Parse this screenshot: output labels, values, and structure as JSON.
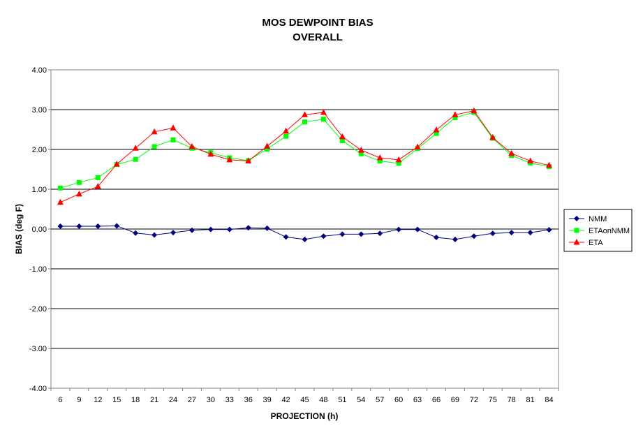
{
  "chart_data": {
    "type": "line",
    "title": "MOS DEWPOINT BIAS",
    "subtitle": "OVERALL",
    "xlabel": "PROJECTION (h)",
    "ylabel": "BIAS (deg F)",
    "ylim": [
      -4.0,
      4.0
    ],
    "y_ticks": [
      "4.00",
      "3.00",
      "2.00",
      "1.00",
      "0.00",
      "-1.00",
      "-2.00",
      "-3.00",
      "-4.00"
    ],
    "grid": true,
    "legend_position": "right",
    "x": [
      "6",
      "9",
      "12",
      "15",
      "18",
      "21",
      "24",
      "27",
      "30",
      "33",
      "36",
      "39",
      "42",
      "45",
      "48",
      "51",
      "54",
      "57",
      "60",
      "63",
      "66",
      "69",
      "72",
      "75",
      "78",
      "81",
      "84"
    ],
    "series": [
      {
        "name": "NMM",
        "color": "#000080",
        "marker": "diamond",
        "values": [
          0.07,
          0.07,
          0.07,
          0.08,
          -0.1,
          -0.15,
          -0.09,
          -0.03,
          -0.01,
          -0.01,
          0.03,
          0.02,
          -0.2,
          -0.26,
          -0.18,
          -0.13,
          -0.13,
          -0.11,
          -0.01,
          -0.01,
          -0.21,
          -0.26,
          -0.18,
          -0.11,
          -0.09,
          -0.09,
          -0.02
        ]
      },
      {
        "name": "ETAonNMM",
        "color": "#00ff00",
        "marker": "square",
        "values": [
          1.03,
          1.17,
          1.29,
          1.62,
          1.75,
          2.07,
          2.24,
          2.03,
          1.92,
          1.79,
          1.72,
          2.01,
          2.33,
          2.69,
          2.76,
          2.22,
          1.89,
          1.71,
          1.65,
          2.02,
          2.4,
          2.8,
          2.93,
          2.28,
          1.85,
          1.66,
          1.57
        ]
      },
      {
        "name": "ETA",
        "color": "#ff0000",
        "marker": "triangle",
        "values": [
          0.67,
          0.88,
          1.07,
          1.63,
          2.03,
          2.44,
          2.54,
          2.07,
          1.88,
          1.74,
          1.71,
          2.08,
          2.46,
          2.87,
          2.93,
          2.32,
          1.98,
          1.79,
          1.74,
          2.06,
          2.49,
          2.87,
          2.97,
          2.3,
          1.9,
          1.71,
          1.6
        ]
      }
    ]
  }
}
